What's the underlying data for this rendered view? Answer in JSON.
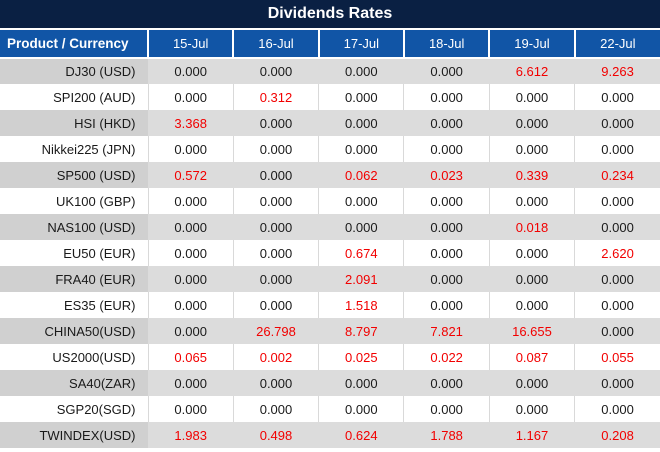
{
  "title": "Dividends Rates",
  "columns": {
    "product_header": "Product / Currency",
    "dates": [
      "15-Jul",
      "16-Jul",
      "17-Jul",
      "18-Jul",
      "19-Jul",
      "22-Jul"
    ]
  },
  "rows": [
    {
      "product": "DJ30 (USD)",
      "values": [
        "0.000",
        "0.000",
        "0.000",
        "0.000",
        "6.612",
        "9.263"
      ]
    },
    {
      "product": "SPI200 (AUD)",
      "values": [
        "0.000",
        "0.312",
        "0.000",
        "0.000",
        "0.000",
        "0.000"
      ]
    },
    {
      "product": "HSI (HKD)",
      "values": [
        "3.368",
        "0.000",
        "0.000",
        "0.000",
        "0.000",
        "0.000"
      ]
    },
    {
      "product": "Nikkei225 (JPN)",
      "values": [
        "0.000",
        "0.000",
        "0.000",
        "0.000",
        "0.000",
        "0.000"
      ]
    },
    {
      "product": "SP500 (USD)",
      "values": [
        "0.572",
        "0.000",
        "0.062",
        "0.023",
        "0.339",
        "0.234"
      ]
    },
    {
      "product": "UK100 (GBP)",
      "values": [
        "0.000",
        "0.000",
        "0.000",
        "0.000",
        "0.000",
        "0.000"
      ]
    },
    {
      "product": "NAS100 (USD)",
      "values": [
        "0.000",
        "0.000",
        "0.000",
        "0.000",
        "0.018",
        "0.000"
      ]
    },
    {
      "product": "EU50 (EUR)",
      "values": [
        "0.000",
        "0.000",
        "0.674",
        "0.000",
        "0.000",
        "2.620"
      ]
    },
    {
      "product": "FRA40 (EUR)",
      "values": [
        "0.000",
        "0.000",
        "2.091",
        "0.000",
        "0.000",
        "0.000"
      ]
    },
    {
      "product": "ES35 (EUR)",
      "values": [
        "0.000",
        "0.000",
        "1.518",
        "0.000",
        "0.000",
        "0.000"
      ]
    },
    {
      "product": "CHINA50(USD)",
      "values": [
        "0.000",
        "26.798",
        "8.797",
        "7.821",
        "16.655",
        "0.000"
      ]
    },
    {
      "product": "US2000(USD)",
      "values": [
        "0.065",
        "0.002",
        "0.025",
        "0.022",
        "0.087",
        "0.055"
      ]
    },
    {
      "product": "SA40(ZAR)",
      "values": [
        "0.000",
        "0.000",
        "0.000",
        "0.000",
        "0.000",
        "0.000"
      ]
    },
    {
      "product": "SGP20(SGD)",
      "values": [
        "0.000",
        "0.000",
        "0.000",
        "0.000",
        "0.000",
        "0.000"
      ]
    },
    {
      "product": "TWINDEX(USD)",
      "values": [
        "1.983",
        "0.498",
        "0.624",
        "1.788",
        "1.167",
        "0.208"
      ]
    }
  ],
  "colors": {
    "title_bg": "#0a2043",
    "header_bg": "#1155a6",
    "header_text": "#ffffff",
    "row_shade_bg": "#dcdcdc",
    "row_shade_product_bg": "#d0d0d0",
    "row_plain_bg": "#ffffff",
    "value_zero_color": "#1a1a1a",
    "value_nonzero_color": "#f20000"
  },
  "zero_value_string": "0.000"
}
